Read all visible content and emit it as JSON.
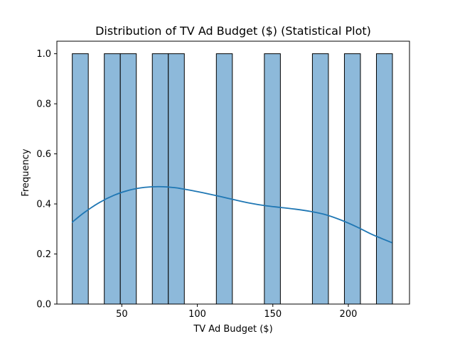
{
  "chart_data": {
    "type": "histogram",
    "title": "Distribution of TV Ad Budget ($) (Statistical Plot)",
    "xlabel": "TV Ad Budget ($)",
    "ylabel": "Frequency",
    "xlim": [
      7.0,
      240.5
    ],
    "ylim": [
      0,
      1.05
    ],
    "x_ticks": [
      50,
      100,
      150,
      200
    ],
    "y_ticks": [
      0.0,
      0.2,
      0.4,
      0.6,
      0.8,
      1.0
    ],
    "x_tick_labels": [
      "50",
      "100",
      "150",
      "200"
    ],
    "y_tick_labels": [
      "0.0",
      "0.2",
      "0.4",
      "0.6",
      "0.8",
      "1.0"
    ],
    "bin_width": 10.6,
    "bins": [
      {
        "x0": 17.2,
        "x1": 27.8,
        "count": 1
      },
      {
        "x0": 38.4,
        "x1": 49.0,
        "count": 1
      },
      {
        "x0": 49.0,
        "x1": 59.6,
        "count": 1
      },
      {
        "x0": 70.2,
        "x1": 80.8,
        "count": 1
      },
      {
        "x0": 80.8,
        "x1": 91.4,
        "count": 1
      },
      {
        "x0": 112.6,
        "x1": 123.2,
        "count": 1
      },
      {
        "x0": 144.4,
        "x1": 155.0,
        "count": 1
      },
      {
        "x0": 176.2,
        "x1": 186.8,
        "count": 1
      },
      {
        "x0": 197.4,
        "x1": 208.0,
        "count": 1
      },
      {
        "x0": 218.6,
        "x1": 229.2,
        "count": 1
      }
    ],
    "kde": {
      "x": [
        17,
        25,
        35,
        45,
        55,
        65,
        75,
        85,
        95,
        105,
        115,
        125,
        135,
        145,
        155,
        165,
        175,
        185,
        195,
        205,
        215,
        222,
        229
      ],
      "y": [
        0.326,
        0.365,
        0.405,
        0.435,
        0.455,
        0.466,
        0.469,
        0.465,
        0.455,
        0.443,
        0.43,
        0.416,
        0.403,
        0.393,
        0.386,
        0.379,
        0.37,
        0.357,
        0.336,
        0.31,
        0.28,
        0.262,
        0.245
      ]
    },
    "grid": false,
    "legend": "none",
    "colors": {
      "bar_fill": "#8db9da",
      "bar_edge": "#000000",
      "kde_line": "#1f77b4"
    }
  }
}
